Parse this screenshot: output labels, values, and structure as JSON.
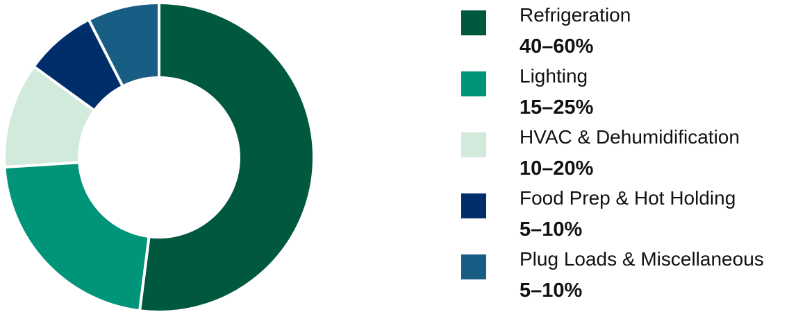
{
  "chart_data": {
    "type": "pie",
    "donut": true,
    "legend_position": "right",
    "slices": [
      {
        "label": "Refrigeration",
        "value_text": "40–60%",
        "share": 0.52,
        "color": "#00583f"
      },
      {
        "label": "Lighting",
        "value_text": "15–25%",
        "share": 0.22,
        "color": "#009479"
      },
      {
        "label": "HVAC & Dehumidification",
        "value_text": "10–20%",
        "share": 0.11,
        "color": "#d1eadb"
      },
      {
        "label": "Food Prep & Hot Holding",
        "value_text": "5–10%",
        "share": 0.075,
        "color": "#002e6b"
      },
      {
        "label": "Plug Loads & Miscellaneous",
        "value_text": "5–10%",
        "share": 0.075,
        "color": "#185d84"
      }
    ]
  }
}
